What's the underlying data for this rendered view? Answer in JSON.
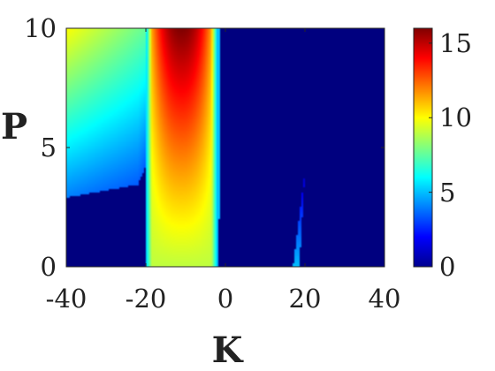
{
  "chart_data": {
    "type": "heatmap",
    "title": "",
    "xlabel": "K",
    "ylabel": "P",
    "xlim": [
      -40,
      40
    ],
    "ylim": [
      0,
      10
    ],
    "x_ticks": [
      -40,
      -20,
      0,
      20,
      40
    ],
    "x_tick_labels": [
      "-40",
      "-20",
      "0",
      "20",
      "40"
    ],
    "y_ticks": [
      0,
      5,
      10
    ],
    "y_tick_labels": [
      "0",
      "5",
      "10"
    ],
    "colorbar": {
      "colormap": "jet",
      "range": [
        0,
        16
      ],
      "ticks": [
        0,
        5,
        10,
        15
      ],
      "tick_labels": [
        "0",
        "5",
        "10",
        "15"
      ]
    },
    "regions": [
      {
        "description": "main lobe",
        "K_center": -11,
        "K_left_edge": -20,
        "K_right_edge": -2,
        "P_range": [
          0,
          10
        ],
        "value_min": 9,
        "value_max": 16
      },
      {
        "description": "left region",
        "K_range": [
          -40,
          -20
        ],
        "P_range": [
          3,
          10
        ],
        "value_range": [
          2,
          10
        ]
      },
      {
        "description": "narrow sliver",
        "K_range": [
          17,
          20
        ],
        "P_range": [
          0,
          4
        ],
        "value_max": 4
      }
    ],
    "background_value": 0
  }
}
